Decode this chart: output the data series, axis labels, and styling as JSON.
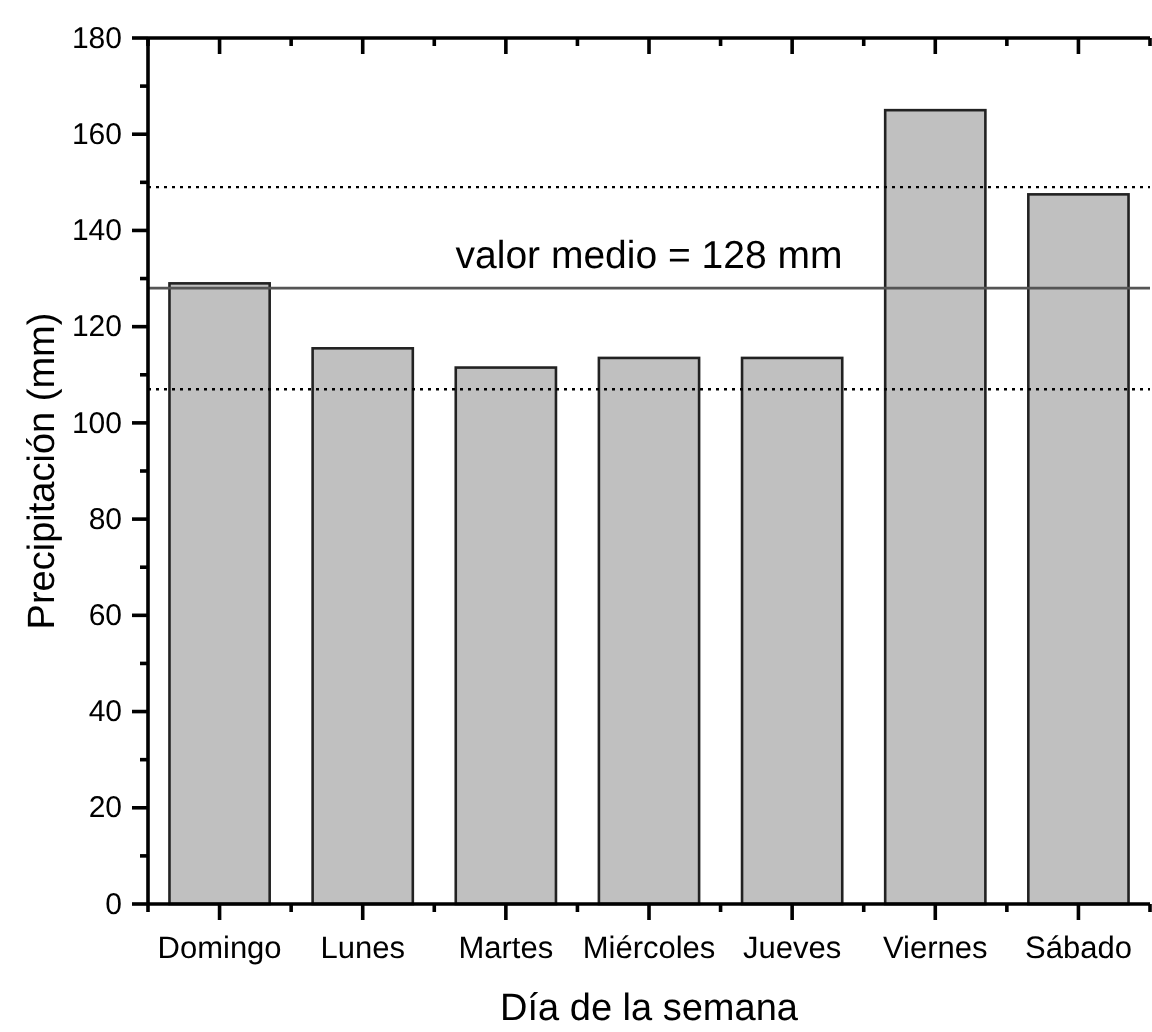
{
  "chart_data": {
    "type": "bar",
    "xlabel": "Día de la semana",
    "ylabel": "Precipitación (mm)",
    "categories": [
      "Domingo",
      "Lunes",
      "Martes",
      "Miércoles",
      "Jueves",
      "Viernes",
      "Sábado"
    ],
    "values": [
      129,
      115.5,
      111.5,
      113.5,
      113.5,
      165,
      147.5
    ],
    "color": "#c0c0c0",
    "ylim": [
      0,
      180
    ],
    "yticks": [
      0,
      {
        "value": 10,
        "label": null
      },
      20,
      {
        "value": 30,
        "label": null
      },
      40,
      {
        "value": 50,
        "label": null
      },
      60,
      {
        "value": 70,
        "label": null
      },
      80,
      {
        "value": 90,
        "label": null
      },
      100,
      {
        "value": 110,
        "label": null
      },
      120,
      {
        "value": 130,
        "label": null
      },
      140,
      {
        "value": 150,
        "label": null
      },
      160,
      {
        "value": 170,
        "label": null
      },
      180
    ],
    "ref_lines": [
      {
        "axis": "y",
        "value": 128,
        "label": "valor medio = 128 mm",
        "color": "#555555",
        "line_style": "solid"
      },
      {
        "axis": "y",
        "value": 149,
        "color": "#000000",
        "line_style": "dotted"
      },
      {
        "axis": "y",
        "value": 107,
        "color": "#000000",
        "line_style": "dotted"
      }
    ]
  }
}
